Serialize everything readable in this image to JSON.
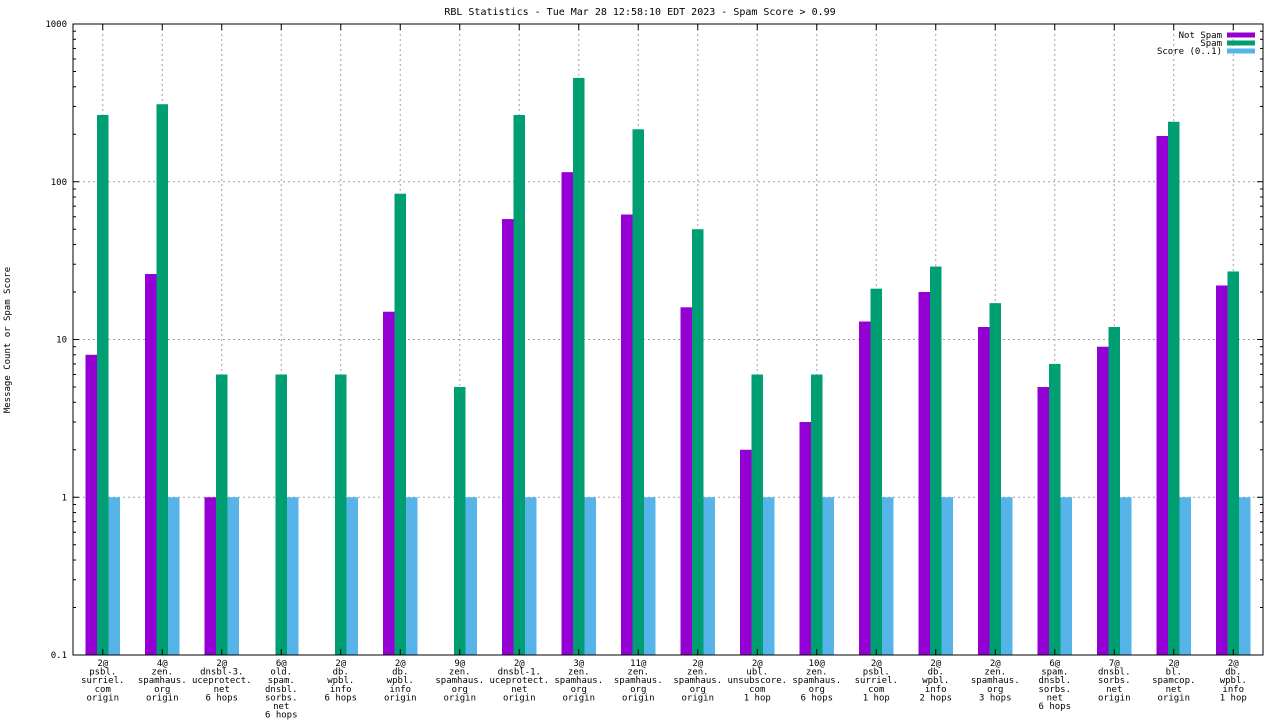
{
  "chart_data": {
    "type": "bar",
    "title": "RBL Statistics - Tue Mar 28 12:58:10 EDT 2023 - Spam Score > 0.99",
    "xlabel": "",
    "ylabel": "Message Count or Spam Score",
    "yscale": "log",
    "ylim": [
      0.1,
      1000
    ],
    "yticks": [
      {
        "value": 0.1,
        "label": "0.1"
      },
      {
        "value": 1,
        "label": "1"
      },
      {
        "value": 10,
        "label": "10"
      },
      {
        "value": 100,
        "label": "100"
      },
      {
        "value": 1000,
        "label": "1000"
      }
    ],
    "grid": true,
    "legend_position": "top-right",
    "categories": [
      [
        "2@",
        "psbl.",
        "surriel.",
        "com",
        "origin"
      ],
      [
        "4@",
        "zen.",
        "spamhaus.",
        "org",
        "origin"
      ],
      [
        "2@",
        "dnsbl-3.",
        "uceprotect.",
        "net",
        "6 hops"
      ],
      [
        "6@",
        "old.",
        "spam.",
        "dnsbl.",
        "sorbs.",
        "net",
        "6 hops"
      ],
      [
        "2@",
        "db.",
        "wpbl.",
        "info",
        "6 hops"
      ],
      [
        "2@",
        "db.",
        "wpbl.",
        "info",
        "origin"
      ],
      [
        "9@",
        "zen.",
        "spamhaus.",
        "org",
        "origin"
      ],
      [
        "2@",
        "dnsbl-1.",
        "uceprotect.",
        "net",
        "origin"
      ],
      [
        "3@",
        "zen.",
        "spamhaus.",
        "org",
        "origin"
      ],
      [
        "11@",
        "zen.",
        "spamhaus.",
        "org",
        "origin"
      ],
      [
        "2@",
        "zen.",
        "spamhaus.",
        "org",
        "origin"
      ],
      [
        "2@",
        "ubl.",
        "unsubscore.",
        "com",
        "1 hop"
      ],
      [
        "10@",
        "zen.",
        "spamhaus.",
        "org",
        "6 hops"
      ],
      [
        "2@",
        "psbl.",
        "surriel.",
        "com",
        "1 hop"
      ],
      [
        "2@",
        "db.",
        "wpbl.",
        "info",
        "2 hops"
      ],
      [
        "2@",
        "zen.",
        "spamhaus.",
        "org",
        "3 hops"
      ],
      [
        "6@",
        "spam.",
        "dnsbl.",
        "sorbs.",
        "net",
        "6 hops"
      ],
      [
        "7@",
        "dnsbl.",
        "sorbs.",
        "net",
        "origin"
      ],
      [
        "2@",
        "bl.",
        "spamcop.",
        "net",
        "origin"
      ],
      [
        "2@",
        "db.",
        "wpbl.",
        "info",
        "1 hop"
      ]
    ],
    "series": [
      {
        "name": "Not Spam",
        "color": "#9400d3",
        "values": [
          8,
          26,
          1,
          null,
          null,
          15,
          null,
          58,
          115,
          62,
          16,
          2,
          3,
          13,
          20,
          12,
          5,
          9,
          195,
          22
        ]
      },
      {
        "name": "Spam",
        "color": "#009e73",
        "values": [
          265,
          310,
          6,
          6,
          6,
          84,
          5,
          265,
          455,
          215,
          50,
          6,
          6,
          21,
          29,
          17,
          7,
          12,
          240,
          27
        ]
      },
      {
        "name": "Score (0..1)",
        "color": "#56b4e9",
        "values": [
          1,
          1,
          1,
          1,
          1,
          1,
          1,
          1,
          1,
          1,
          1,
          1,
          1,
          1,
          1,
          1,
          1,
          1,
          1,
          1
        ]
      }
    ]
  }
}
